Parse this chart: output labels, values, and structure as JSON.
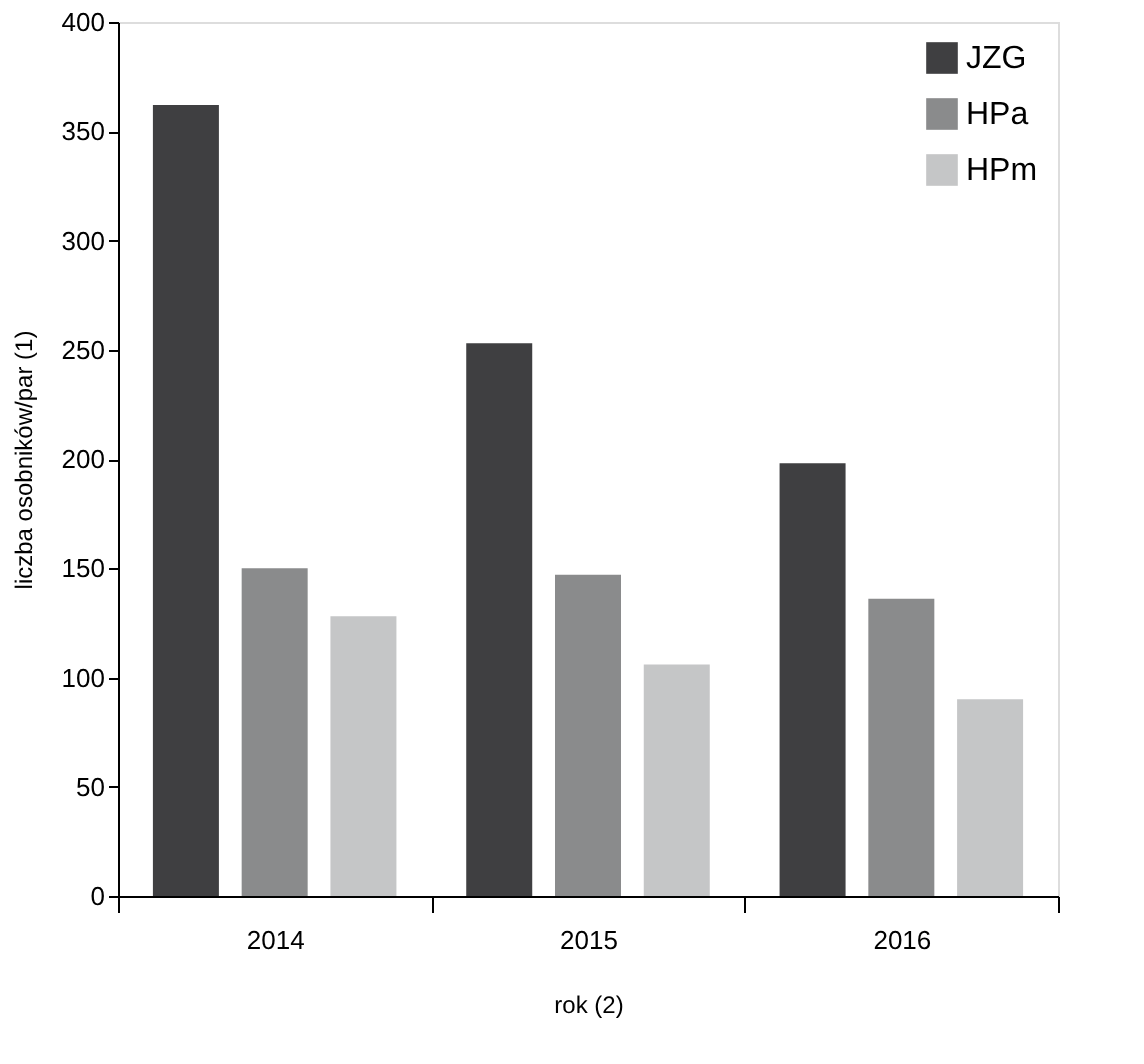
{
  "chart_data": {
    "type": "bar",
    "xlabel": "rok (2)",
    "ylabel": "liczba osobników/par (1)",
    "categories": [
      "2014",
      "2015",
      "2016"
    ],
    "series": [
      {
        "name": "JZG",
        "color": "#3f3f41",
        "values": [
          362,
          253,
          198
        ]
      },
      {
        "name": "HPa",
        "color": "#8a8b8c",
        "values": [
          150,
          147,
          136
        ]
      },
      {
        "name": "HPm",
        "color": "#c5c6c7",
        "values": [
          128,
          106,
          90
        ]
      }
    ],
    "ylim": [
      0,
      400
    ],
    "yticks": [
      0,
      50,
      100,
      150,
      200,
      250,
      300,
      350,
      400
    ],
    "grid": false,
    "legend": "top right"
  }
}
